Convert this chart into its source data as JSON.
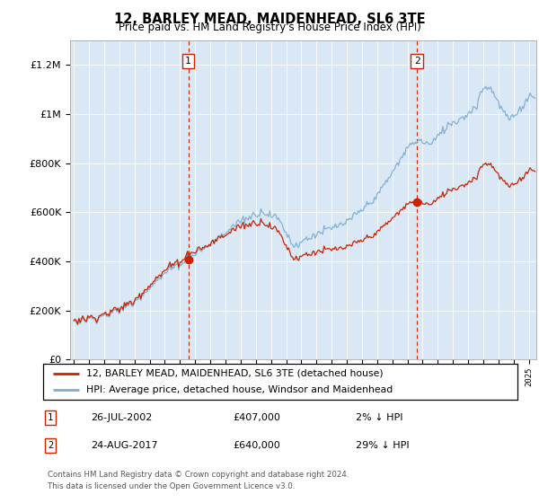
{
  "title": "12, BARLEY MEAD, MAIDENHEAD, SL6 3TE",
  "subtitle": "Price paid vs. HM Land Registry's House Price Index (HPI)",
  "sale1_x": 2002.542,
  "sale1_price": 407000,
  "sale2_x": 2017.625,
  "sale2_price": 640000,
  "legend_line1": "12, BARLEY MEAD, MAIDENHEAD, SL6 3TE (detached house)",
  "legend_line2": "HPI: Average price, detached house, Windsor and Maidenhead",
  "ann1_date": "26-JUL-2002",
  "ann1_price": "£407,000",
  "ann1_hpi": "2% ↓ HPI",
  "ann2_date": "24-AUG-2017",
  "ann2_price": "£640,000",
  "ann2_hpi": "29% ↓ HPI",
  "footer_line1": "Contains HM Land Registry data © Crown copyright and database right 2024.",
  "footer_line2": "This data is licensed under the Open Government Licence v3.0.",
  "hpi_color": "#7BAFD4",
  "price_color": "#CC2200",
  "vline_color": "#CC2200",
  "bg_color": "#DAE8F5",
  "ylim_max": 1300000,
  "xlim_min": 1994.75,
  "xlim_max": 2025.5
}
